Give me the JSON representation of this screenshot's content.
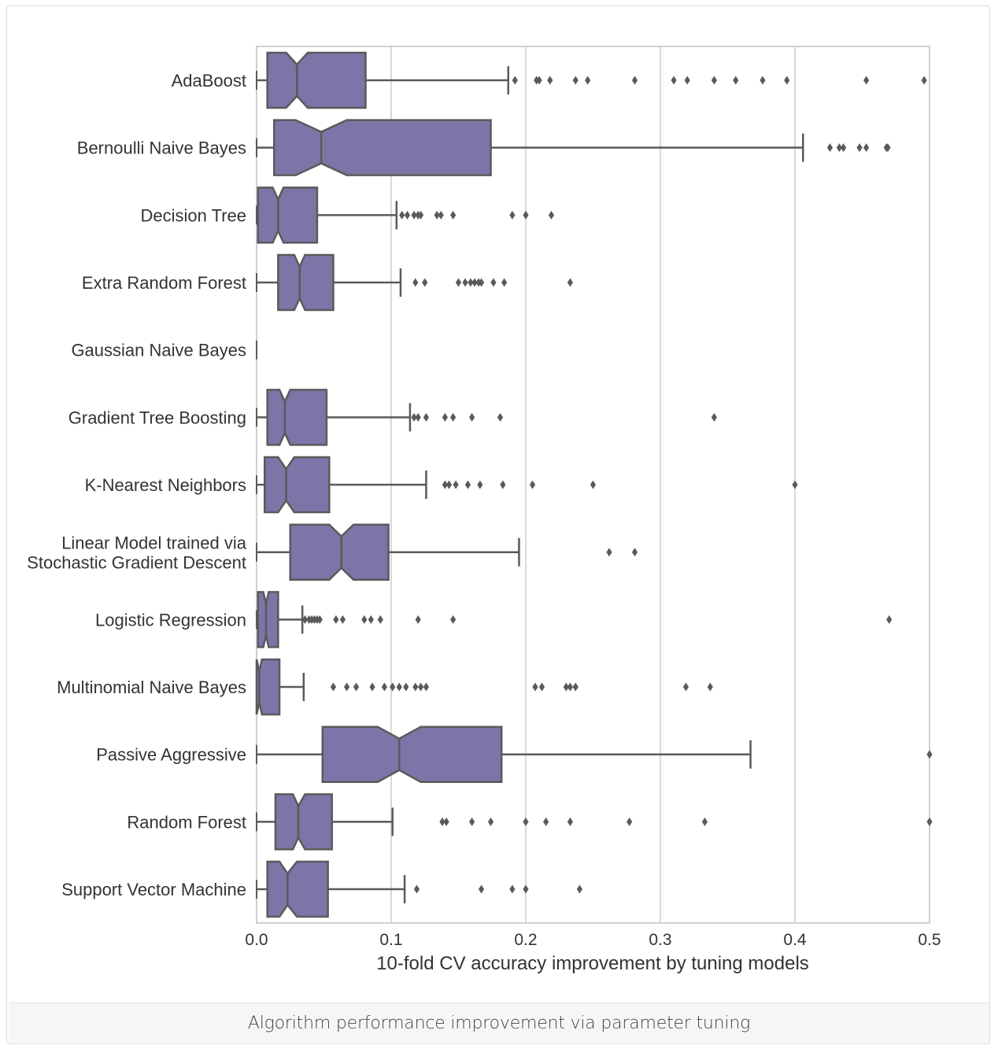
{
  "caption": "Algorithm performance improvement via parameter tuning",
  "chart_data": {
    "type": "boxplot",
    "orientation": "horizontal",
    "notched": true,
    "xlabel": "10-fold CV accuracy improvement by tuning models",
    "xlim": [
      0.0,
      0.5
    ],
    "xticks": [
      "0.0",
      "0.1",
      "0.2",
      "0.3",
      "0.4",
      "0.5"
    ],
    "xtick_values": [
      0.0,
      0.1,
      0.2,
      0.3,
      0.4,
      0.5
    ],
    "grid": "vertical",
    "box_color": "#7b75a8",
    "line_color": "#5a5a5a",
    "categories": [
      {
        "label": [
          "AdaBoost"
        ],
        "whislo": 0.0,
        "q1": 0.008,
        "med": 0.03,
        "q3": 0.081,
        "whishi": 0.187,
        "notchlo": 0.022,
        "notchhi": 0.038,
        "fliers": [
          0.192,
          0.208,
          0.21,
          0.218,
          0.237,
          0.246,
          0.281,
          0.31,
          0.32,
          0.34,
          0.356,
          0.376,
          0.394,
          0.453,
          0.496
        ]
      },
      {
        "label": [
          "Bernoulli Naive Bayes"
        ],
        "whislo": 0.0,
        "q1": 0.013,
        "med": 0.048,
        "q3": 0.174,
        "whishi": 0.406,
        "notchlo": 0.029,
        "notchhi": 0.067,
        "fliers": [
          0.426,
          0.433,
          0.436,
          0.448,
          0.453,
          0.468,
          0.469
        ]
      },
      {
        "label": [
          "Decision Tree"
        ],
        "whislo": 0.0,
        "q1": 0.001,
        "med": 0.016,
        "q3": 0.045,
        "whishi": 0.104,
        "notchlo": 0.012,
        "notchhi": 0.02,
        "fliers": [
          0.108,
          0.112,
          0.117,
          0.12,
          0.122,
          0.134,
          0.137,
          0.146,
          0.19,
          0.2,
          0.219
        ]
      },
      {
        "label": [
          "Extra Random Forest"
        ],
        "whislo": 0.0,
        "q1": 0.016,
        "med": 0.032,
        "q3": 0.057,
        "whishi": 0.107,
        "notchlo": 0.028,
        "notchhi": 0.036,
        "fliers": [
          0.118,
          0.125,
          0.15,
          0.155,
          0.159,
          0.162,
          0.165,
          0.167,
          0.176,
          0.184,
          0.233
        ]
      },
      {
        "label": [
          "Gaussian Naive Bayes"
        ],
        "whislo": 0.0,
        "q1": 0.0,
        "med": 0.0,
        "q3": 0.0,
        "whishi": 0.0,
        "notchlo": 0.0,
        "notchhi": 0.0,
        "fliers": []
      },
      {
        "label": [
          "Gradient Tree Boosting"
        ],
        "whislo": 0.0,
        "q1": 0.008,
        "med": 0.021,
        "q3": 0.052,
        "whishi": 0.114,
        "notchlo": 0.017,
        "notchhi": 0.025,
        "fliers": [
          0.117,
          0.12,
          0.126,
          0.14,
          0.146,
          0.16,
          0.181,
          0.34
        ]
      },
      {
        "label": [
          "K-Nearest Neighbors"
        ],
        "whislo": 0.0,
        "q1": 0.006,
        "med": 0.022,
        "q3": 0.054,
        "whishi": 0.126,
        "notchlo": 0.016,
        "notchhi": 0.028,
        "fliers": [
          0.14,
          0.143,
          0.148,
          0.157,
          0.166,
          0.183,
          0.205,
          0.25,
          0.4
        ]
      },
      {
        "label": [
          "Linear Model trained via",
          "Stochastic Gradient Descent"
        ],
        "whislo": 0.0,
        "q1": 0.025,
        "med": 0.063,
        "q3": 0.098,
        "whishi": 0.195,
        "notchlo": 0.054,
        "notchhi": 0.072,
        "fliers": [
          0.262,
          0.281
        ]
      },
      {
        "label": [
          "Logistic Regression"
        ],
        "whislo": 0.0,
        "q1": 0.001,
        "med": 0.007,
        "q3": 0.016,
        "whishi": 0.034,
        "notchlo": 0.005,
        "notchhi": 0.009,
        "fliers": [
          0.036,
          0.039,
          0.041,
          0.043,
          0.045,
          0.047,
          0.059,
          0.064,
          0.08,
          0.085,
          0.092,
          0.12,
          0.146,
          0.47
        ]
      },
      {
        "label": [
          "Multinomial Naive Bayes"
        ],
        "whislo": 0.0,
        "q1": 0.0,
        "med": 0.002,
        "q3": 0.017,
        "whishi": 0.035,
        "notchlo": 0.0,
        "notchhi": 0.004,
        "fliers": [
          0.057,
          0.067,
          0.074,
          0.086,
          0.095,
          0.101,
          0.106,
          0.111,
          0.118,
          0.122,
          0.126,
          0.207,
          0.212,
          0.23,
          0.233,
          0.237,
          0.319,
          0.337
        ]
      },
      {
        "label": [
          "Passive Aggressive"
        ],
        "whislo": 0.0,
        "q1": 0.049,
        "med": 0.106,
        "q3": 0.182,
        "whishi": 0.367,
        "notchlo": 0.09,
        "notchhi": 0.122,
        "fliers": [
          0.5
        ]
      },
      {
        "label": [
          "Random Forest"
        ],
        "whislo": 0.0,
        "q1": 0.014,
        "med": 0.031,
        "q3": 0.056,
        "whishi": 0.101,
        "notchlo": 0.027,
        "notchhi": 0.036,
        "fliers": [
          0.138,
          0.141,
          0.16,
          0.174,
          0.2,
          0.215,
          0.233,
          0.277,
          0.333,
          0.5
        ]
      },
      {
        "label": [
          "Support Vector Machine"
        ],
        "whislo": 0.0,
        "q1": 0.008,
        "med": 0.023,
        "q3": 0.053,
        "whishi": 0.11,
        "notchlo": 0.017,
        "notchhi": 0.03,
        "fliers": [
          0.119,
          0.167,
          0.19,
          0.2,
          0.24
        ]
      }
    ]
  }
}
